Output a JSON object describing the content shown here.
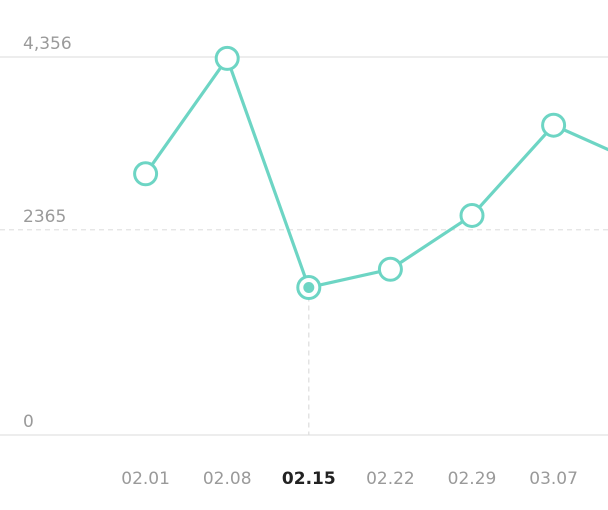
{
  "chart_data": {
    "type": "line",
    "categories": [
      "",
      "02.01",
      "02.08",
      "02.15",
      "02.22",
      "02.29",
      "03.07",
      ""
    ],
    "series": [
      {
        "values": [
          null,
          3010,
          4340,
          1700,
          1910,
          2530,
          3570,
          3150
        ]
      }
    ],
    "ylim": [
      0,
      4356
    ],
    "y_ticks": [
      {
        "value": 0,
        "label": "0"
      },
      {
        "value": 2365,
        "label": "2365"
      },
      {
        "value": 4356,
        "label": "4,356"
      }
    ],
    "highlighted_category": "02.15",
    "grid": true,
    "legend": "none",
    "colors": {
      "line": "#6dd5c4",
      "grid": "#e2e2e2",
      "tick": "#9a9a9a",
      "active_tick": "#222222",
      "marker_fill": "#ffffff"
    }
  }
}
